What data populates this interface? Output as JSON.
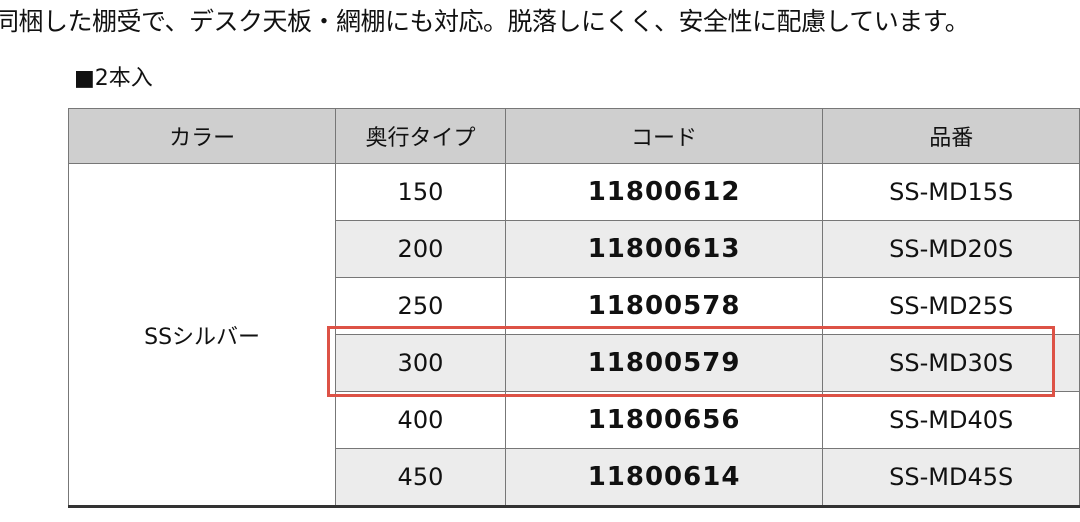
{
  "intro": "同梱した棚受で、デスク天板・網棚にも対応。脱落しにくく、安全性に配慮しています。",
  "subtitle": "■2本入",
  "table": {
    "headers": [
      "カラー",
      "奥行タイプ",
      "コード",
      "品番"
    ],
    "color": "SSシルバー",
    "rows": [
      [
        "150",
        "11800612",
        "SS-MD15S"
      ],
      [
        "200",
        "11800613",
        "SS-MD20S"
      ],
      [
        "250",
        "11800578",
        "SS-MD25S"
      ],
      [
        "300",
        "11800579",
        "SS-MD30S"
      ],
      [
        "400",
        "11800656",
        "SS-MD40S"
      ],
      [
        "450",
        "11800614",
        "SS-MD45S"
      ]
    ],
    "highlight_row": 3
  }
}
